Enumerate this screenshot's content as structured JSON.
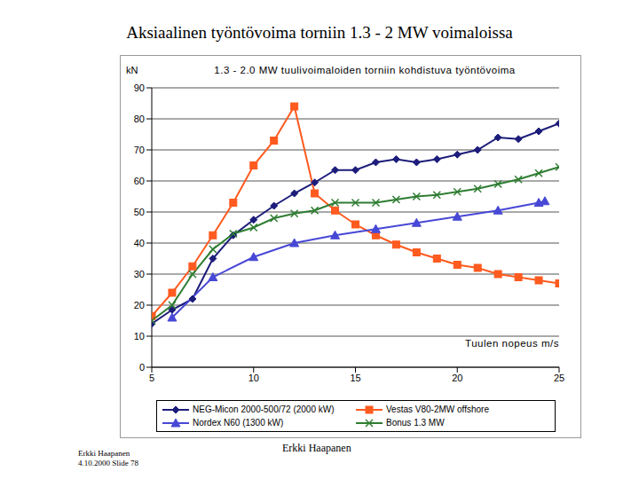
{
  "slide": {
    "title": "Aksiaalinen työntövoima torniin 1.3 - 2 MW voimaloissa",
    "footer_left": [
      "Erkki Haapanen",
      "4.10.2000 Slide 78"
    ],
    "footer_center": "Erkki Haapanen"
  },
  "chart_data": {
    "type": "line",
    "title": "1.3 - 2.0 MW tuulivoimaloiden torniin kohdistuva työntövoima",
    "y_label": "kN",
    "x_label": "Tuulen nopeus m/s",
    "xlim": [
      5,
      25
    ],
    "xticks": [
      5,
      10,
      15,
      20,
      25
    ],
    "ylim": [
      0,
      90
    ],
    "yticks": [
      0,
      10,
      20,
      30,
      40,
      50,
      60,
      70,
      80,
      90
    ],
    "grid": true,
    "legend": "bottom",
    "series": [
      {
        "name": "NEG-Micon 2000-500/72 (2000 kW)",
        "color": "#1c1c7a",
        "marker": "diamond",
        "x": [
          5,
          6,
          7,
          8,
          9,
          10,
          11,
          12,
          13,
          14,
          15,
          16,
          17,
          18,
          19,
          20,
          21,
          22,
          23,
          24,
          25
        ],
        "values": [
          14,
          18.5,
          22,
          35,
          42.5,
          47.5,
          52,
          56,
          59.5,
          63.5,
          63.5,
          66,
          67,
          66,
          67,
          68.5,
          70,
          74,
          73.5,
          76,
          78.5
        ]
      },
      {
        "name": "Vestas V80-2MW offshore",
        "color": "#ff5a1f",
        "marker": "square",
        "x": [
          5,
          6,
          7,
          8,
          9,
          10,
          11,
          12,
          13,
          14,
          15,
          16,
          17,
          18,
          19,
          20,
          21,
          22,
          23,
          24,
          25
        ],
        "values": [
          16.5,
          24,
          32.5,
          42.5,
          53,
          65,
          73,
          84,
          56,
          50.5,
          46,
          42.5,
          39.5,
          37,
          35,
          33,
          32,
          30,
          29,
          28,
          27
        ]
      },
      {
        "name": "Nordex N60 (1300 kW)",
        "color": "#4848d6",
        "marker": "triangle",
        "x": [
          6,
          8,
          10,
          12,
          14,
          16,
          18,
          20,
          22,
          24,
          24.3
        ],
        "values": [
          16,
          29,
          35.5,
          40,
          42.5,
          44.5,
          46.5,
          48.5,
          50.5,
          53,
          53.5
        ]
      },
      {
        "name": "Bonus 1.3 MW",
        "color": "#2e7d32",
        "marker": "x",
        "x": [
          5,
          6,
          7,
          8,
          9,
          10,
          11,
          12,
          13,
          14,
          15,
          16,
          17,
          18,
          19,
          20,
          21,
          22,
          23,
          24,
          25
        ],
        "values": [
          15,
          20,
          30,
          38,
          43,
          45,
          48,
          49.5,
          50.5,
          53,
          53,
          53,
          54,
          55,
          55.5,
          56.5,
          57.5,
          59,
          60.5,
          62.5,
          64.5
        ]
      }
    ]
  }
}
